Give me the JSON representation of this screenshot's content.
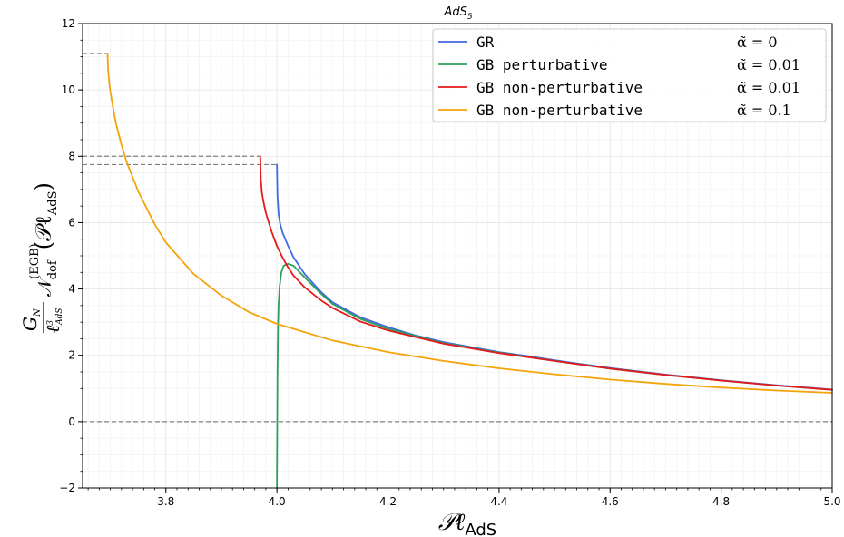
{
  "chart_data": {
    "type": "line",
    "title_main": "AdS",
    "title_sub": "5",
    "xlabel_main": "𝒫ℓ",
    "xlabel_sub": "AdS",
    "ylabel": {
      "frac_num": "G",
      "frac_num_sub": "N",
      "frac_den": "ℓ",
      "frac_den_sup": "3",
      "frac_den_sub": "AdS",
      "symbol": "𝒩",
      "symbol_sup": "(EGB)",
      "symbol_sub": "dof",
      "arg_open": "(𝒫ℓ",
      "arg_sub": "AdS",
      "arg_close": ")"
    },
    "xlim": [
      3.65,
      5.0
    ],
    "ylim": [
      -2,
      12
    ],
    "xticks": [
      3.8,
      4.0,
      4.2,
      4.4,
      4.6,
      4.8,
      5.0
    ],
    "xtick_labels": [
      "3.8",
      "4.0",
      "4.2",
      "4.4",
      "4.6",
      "4.8",
      "5.0"
    ],
    "yticks": [
      -2,
      0,
      2,
      4,
      6,
      8,
      10,
      12
    ],
    "ytick_labels": [
      "−2",
      "0",
      "2",
      "4",
      "6",
      "8",
      "10",
      "12"
    ],
    "grid": true,
    "legend_position": "top-right",
    "series": [
      {
        "name": "GR",
        "param": "α̃ = 0",
        "color": "#4169e1",
        "x": [
          4.0,
          4.001,
          4.003,
          4.006,
          4.01,
          4.02,
          4.03,
          4.05,
          4.08,
          4.1,
          4.15,
          4.2,
          4.25,
          4.3,
          4.35,
          4.4,
          4.45,
          4.5,
          4.6,
          4.7,
          4.8,
          4.9,
          5.0
        ],
        "y": [
          7.75,
          6.8,
          6.25,
          5.95,
          5.7,
          5.3,
          4.95,
          4.45,
          3.9,
          3.6,
          3.15,
          2.85,
          2.6,
          2.4,
          2.25,
          2.1,
          1.98,
          1.85,
          1.62,
          1.42,
          1.25,
          1.1,
          0.97
        ]
      },
      {
        "name": "GB perturbative",
        "param": "α̃ = 0.01",
        "color": "#2ca05a",
        "x": [
          4.0,
          4.0005,
          4.001,
          4.002,
          4.003,
          4.005,
          4.008,
          4.012,
          4.02,
          4.03,
          4.05,
          4.08,
          4.1,
          4.15,
          4.2,
          4.3,
          4.4,
          4.5,
          4.6,
          4.7,
          4.8,
          4.9,
          5.0
        ],
        "y": [
          -2.0,
          0.0,
          1.6,
          2.9,
          3.55,
          4.1,
          4.5,
          4.7,
          4.76,
          4.7,
          4.35,
          3.85,
          3.55,
          3.1,
          2.8,
          2.37,
          2.08,
          1.83,
          1.6,
          1.41,
          1.24,
          1.09,
          0.96
        ]
      },
      {
        "name": "GB non-perturbative",
        "param": "α̃ = 0.01",
        "color": "#e41a1c",
        "x": [
          3.97,
          3.971,
          3.973,
          3.976,
          3.98,
          3.99,
          4.0,
          4.01,
          4.02,
          4.03,
          4.05,
          4.08,
          4.1,
          4.15,
          4.2,
          4.3,
          4.4,
          4.5,
          4.6,
          4.7,
          4.8,
          4.9,
          5.0
        ],
        "y": [
          8.0,
          7.3,
          6.9,
          6.6,
          6.3,
          5.75,
          5.3,
          4.95,
          4.65,
          4.4,
          4.05,
          3.65,
          3.43,
          3.02,
          2.75,
          2.35,
          2.07,
          1.83,
          1.6,
          1.41,
          1.24,
          1.09,
          0.96
        ]
      },
      {
        "name": "GB non-perturbative",
        "param": "α̃ = 0.1",
        "color": "#f5a30a",
        "x": [
          3.695,
          3.696,
          3.698,
          3.7,
          3.705,
          3.71,
          3.72,
          3.73,
          3.75,
          3.78,
          3.8,
          3.85,
          3.9,
          3.95,
          4.0,
          4.1,
          4.2,
          4.3,
          4.4,
          4.5,
          4.6,
          4.7,
          4.8,
          4.9,
          5.0
        ],
        "y": [
          11.1,
          10.6,
          10.2,
          9.95,
          9.45,
          9.0,
          8.35,
          7.8,
          6.95,
          5.95,
          5.4,
          4.45,
          3.8,
          3.3,
          2.95,
          2.45,
          2.1,
          1.83,
          1.61,
          1.43,
          1.27,
          1.14,
          1.03,
          0.94,
          0.87
        ]
      }
    ],
    "reference_lines": [
      {
        "kind": "horizontal",
        "y": 0.0,
        "x_from": 3.65,
        "x_to": 5.0,
        "color": "#808080"
      },
      {
        "kind": "horizontal",
        "y": 11.1,
        "x_from": 3.65,
        "x_to": 3.695,
        "color": "#808080"
      },
      {
        "kind": "horizontal",
        "y": 8.0,
        "x_from": 3.65,
        "x_to": 3.97,
        "color": "#808080"
      },
      {
        "kind": "horizontal",
        "y": 7.75,
        "x_from": 3.65,
        "x_to": 4.0,
        "color": "#808080"
      }
    ]
  }
}
